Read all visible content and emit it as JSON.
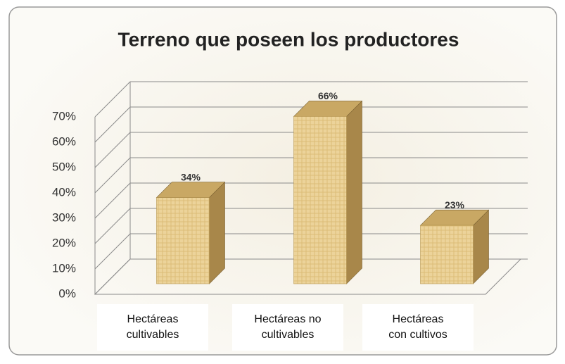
{
  "chart_data": {
    "type": "bar3d",
    "title": "Terreno que poseen los productores",
    "categories": [
      "Hectáreas\ncultivables",
      "Hectáreas no\ncultivables",
      "Hectáreas\ncon cultivos"
    ],
    "values": [
      34,
      66,
      23
    ],
    "value_labels": [
      "34%",
      "66%",
      "23%"
    ],
    "color": "#ecd39a",
    "ylim": [
      0,
      70
    ],
    "yticks": [
      {
        "value": 0,
        "label": "0%"
      },
      {
        "value": 10,
        "label": "10%"
      },
      {
        "value": 20,
        "label": "20%"
      },
      {
        "value": 30,
        "label": "30%"
      },
      {
        "value": 40,
        "label": "40%"
      },
      {
        "value": 50,
        "label": "50%"
      },
      {
        "value": 60,
        "label": "60%"
      },
      {
        "value": 70,
        "label": "70%"
      }
    ],
    "grid": true
  }
}
